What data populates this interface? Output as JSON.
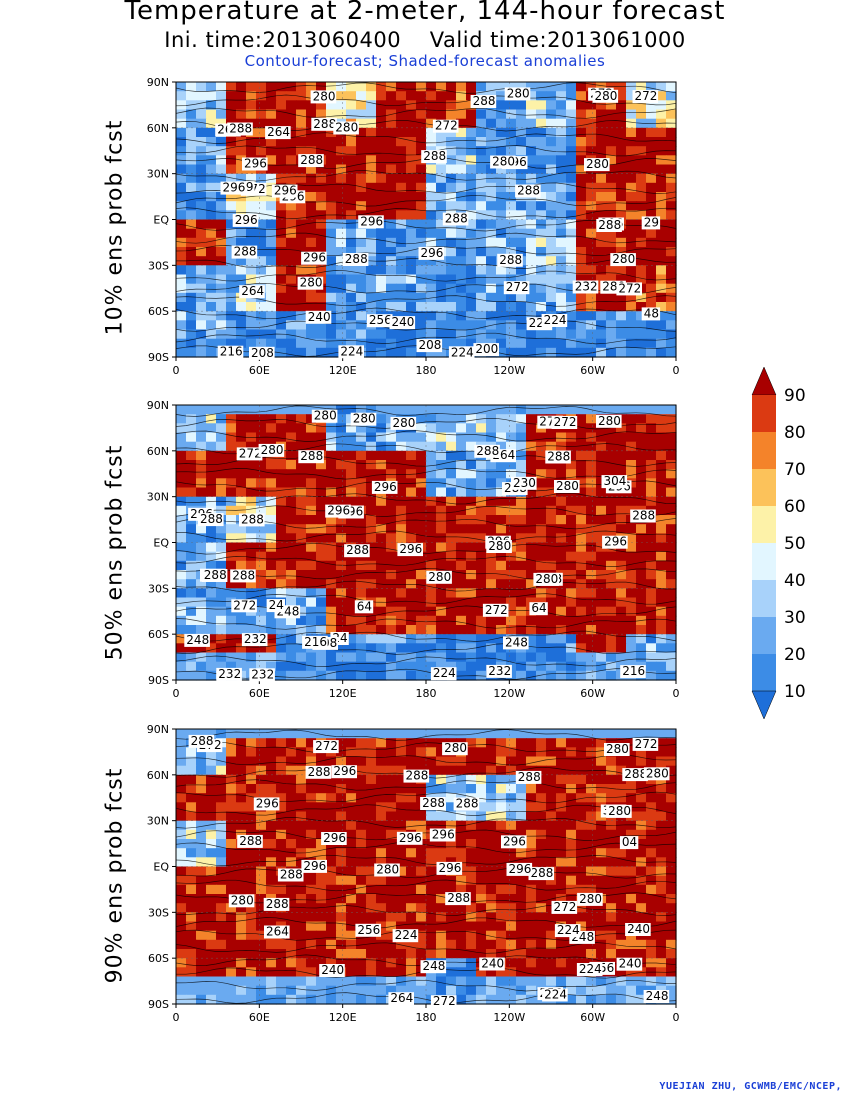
{
  "title": "Temperature at 2-meter, 144-hour forecast",
  "init_label": "Ini. time:2013060400",
  "valid_label": "Valid time:2013061000",
  "subtitle": "Contour-forecast; Shaded-forecast anomalies",
  "credit": "YUEJIAN ZHU, GCWMB/EMC/NCEP,",
  "lat_labels": [
    "90N",
    "60N",
    "30N",
    "EQ",
    "30S",
    "60S",
    "90S"
  ],
  "lon_labels": [
    "0",
    "60E",
    "120E",
    "180",
    "120W",
    "60W",
    "0"
  ],
  "colorbar": {
    "ticks": [
      "10",
      "20",
      "30",
      "40",
      "50",
      "60",
      "70",
      "80",
      "90"
    ],
    "colors": [
      "#1e6fd9",
      "#3c8ce6",
      "#6aaaf0",
      "#a8d2fa",
      "#e2f6ff",
      "#fdf2a8",
      "#fcc25a",
      "#f4832a",
      "#db3a12",
      "#a80000"
    ]
  },
  "panels": [
    {
      "label": "10% ens prob fcst",
      "contour_labels": [
        "280",
        "272",
        "280",
        "272",
        "280",
        "288",
        "288",
        "264",
        "264",
        "272",
        "280",
        "288",
        "280",
        "288",
        "288",
        "296",
        "280",
        "296",
        "272",
        "288",
        "296",
        "29",
        "296",
        "296",
        "296",
        "288",
        "29",
        "296",
        "296",
        "288",
        "296",
        "288",
        "296",
        "288",
        "288",
        "280",
        "280",
        "280",
        "272",
        "272",
        "232",
        "264",
        "256",
        "48",
        "240",
        "240",
        "222",
        "224",
        "200",
        "208",
        "208",
        "216",
        "224",
        "224"
      ]
    },
    {
      "label": "50% ens prob fcst",
      "contour_labels": [
        "280",
        "272",
        "280",
        "280",
        "280",
        "272",
        "272",
        "264",
        "288",
        "288",
        "280",
        "288",
        "288",
        "230",
        "296",
        "280",
        "296",
        "304",
        "288",
        "296",
        "296",
        "288",
        "296",
        "288",
        "296",
        "296",
        "288",
        "296",
        "280",
        "296",
        "288",
        "288",
        "280",
        "288",
        "280",
        "272",
        "64",
        "272",
        "248",
        "64",
        "24",
        "248",
        "232",
        "24",
        "248",
        "208",
        "216",
        "232",
        "224",
        "232",
        "232",
        "216"
      ]
    },
    {
      "label": "90% ens prob fcst",
      "contour_labels": [
        "272",
        "280",
        "272",
        "280",
        "288",
        "272",
        "288",
        "288",
        "296",
        "288",
        "280",
        "288",
        "288",
        "304",
        "288",
        "280",
        "296",
        "296",
        "288",
        "296",
        "296",
        "04",
        "296",
        "288",
        "296",
        "296",
        "296",
        "288",
        "280",
        "288",
        "288",
        "280",
        "272",
        "280",
        "264",
        "256",
        "248",
        "240",
        "224",
        "224",
        "248",
        "256",
        "224",
        "240",
        "240",
        "240",
        "256",
        "272",
        "264",
        "248",
        "224"
      ]
    }
  ]
}
